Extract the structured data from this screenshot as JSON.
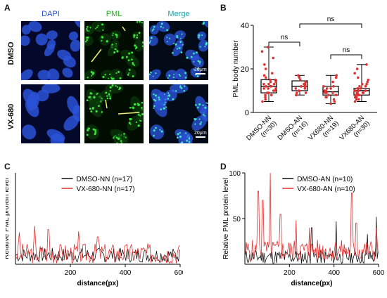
{
  "panels": {
    "A": {
      "label": "A",
      "columns": [
        "DAPI",
        "PML",
        "Merge"
      ],
      "rows": [
        "DMSO",
        "VX-680"
      ],
      "scale_bar": "20μm",
      "column_colors": [
        "#1f4fd6",
        "#21b021",
        "#20a0a0"
      ]
    },
    "B": {
      "label": "B"
    },
    "C": {
      "label": "C"
    },
    "D": {
      "label": "D"
    }
  },
  "chart_data": [
    {
      "type": "box",
      "ylabel": "PML body number",
      "ylim": [
        0,
        40
      ],
      "yticks": [
        0,
        20,
        40
      ],
      "categories": [
        "DMSO-NN (n=30)",
        "DMSO-AN (n=16)",
        "VX680-NN (n=19)",
        "VX680-AN (n=30)"
      ],
      "category_lines": [
        [
          "DMSO-NN",
          "(n=30)"
        ],
        [
          "DMSO-AN",
          "(n=16)"
        ],
        [
          "VX680-NN",
          "(n=19)"
        ],
        [
          "VX680-AN",
          "(n=30)"
        ]
      ],
      "boxes": [
        {
          "min": 5,
          "q1": 9,
          "median": 12,
          "q3": 15,
          "max": 30
        },
        {
          "min": 8,
          "q1": 10,
          "median": 12,
          "q3": 14.5,
          "max": 17
        },
        {
          "min": 4,
          "q1": 8,
          "median": 9.5,
          "q3": 12,
          "max": 17
        },
        {
          "min": 5,
          "q1": 8,
          "median": 10,
          "q3": 11,
          "max": 22
        }
      ],
      "points": [
        [
          5,
          6,
          7,
          8,
          8,
          9,
          9,
          10,
          10,
          11,
          11,
          11,
          12,
          12,
          12,
          13,
          13,
          13,
          14,
          14,
          15,
          15,
          16,
          17,
          18,
          20,
          22,
          25,
          28,
          30
        ],
        [
          8,
          9,
          9,
          10,
          10,
          11,
          11,
          12,
          12,
          12,
          13,
          13,
          14,
          15,
          16,
          17
        ],
        [
          4,
          5,
          6,
          7,
          7,
          8,
          8,
          9,
          9,
          9,
          10,
          10,
          11,
          11,
          12,
          12,
          14,
          16,
          17
        ],
        [
          5,
          6,
          6,
          7,
          7,
          8,
          8,
          8,
          9,
          9,
          9,
          9,
          10,
          10,
          10,
          10,
          10,
          11,
          11,
          11,
          12,
          12,
          13,
          13,
          14,
          15,
          16,
          18,
          20,
          22
        ]
      ],
      "point_color": "#e03030",
      "significance": [
        {
          "pair": [
            0,
            1
          ],
          "text": "ns"
        },
        {
          "pair": [
            1,
            3
          ],
          "text": "ns"
        },
        {
          "pair": [
            2,
            3
          ],
          "text": "ns"
        }
      ]
    },
    {
      "type": "line",
      "xlabel": "distance(px)",
      "ylabel": "Relative PML protein level",
      "xlim": [
        0,
        600
      ],
      "ylim": [
        0,
        100
      ],
      "xticks": [
        200,
        400,
        600
      ],
      "yticks": [],
      "series": [
        {
          "name": "DMSO-NN (n=17)",
          "color": "#111111",
          "seed": 7,
          "base": 10,
          "amp": 10,
          "spikes": []
        },
        {
          "name": "VX-680-NN (n=17)",
          "color": "#e03030",
          "seed": 3,
          "base": 12,
          "amp": 14,
          "spikes": [
            [
              15,
              35
            ],
            [
              70,
              42
            ],
            [
              120,
              38
            ],
            [
              230,
              36
            ],
            [
              300,
              30
            ]
          ]
        }
      ],
      "legend": "top-right"
    },
    {
      "type": "line",
      "xlabel": "distance(px)",
      "ylabel": "Relative PML protein level",
      "xlim": [
        0,
        600
      ],
      "ylim": [
        0,
        100
      ],
      "xticks": [
        200,
        400,
        600
      ],
      "yticks": [
        50,
        100
      ],
      "series": [
        {
          "name": "DMSO-AN (n=10)",
          "color": "#111111",
          "seed": 11,
          "base": 8,
          "amp": 10,
          "spikes": [
            [
              300,
              40
            ],
            [
              410,
              47
            ],
            [
              590,
              52
            ],
            [
              550,
              33
            ]
          ]
        },
        {
          "name": "VX-680-AN (n=10)",
          "color": "#e03030",
          "seed": 5,
          "base": 15,
          "amp": 15,
          "spikes": [
            [
              60,
              80
            ],
            [
              80,
              70
            ],
            [
              115,
              100
            ],
            [
              160,
              55
            ],
            [
              230,
              48
            ],
            [
              290,
              40
            ],
            [
              480,
              78
            ],
            [
              500,
              45
            ],
            [
              590,
              40
            ]
          ]
        }
      ],
      "legend": "top-right"
    }
  ]
}
